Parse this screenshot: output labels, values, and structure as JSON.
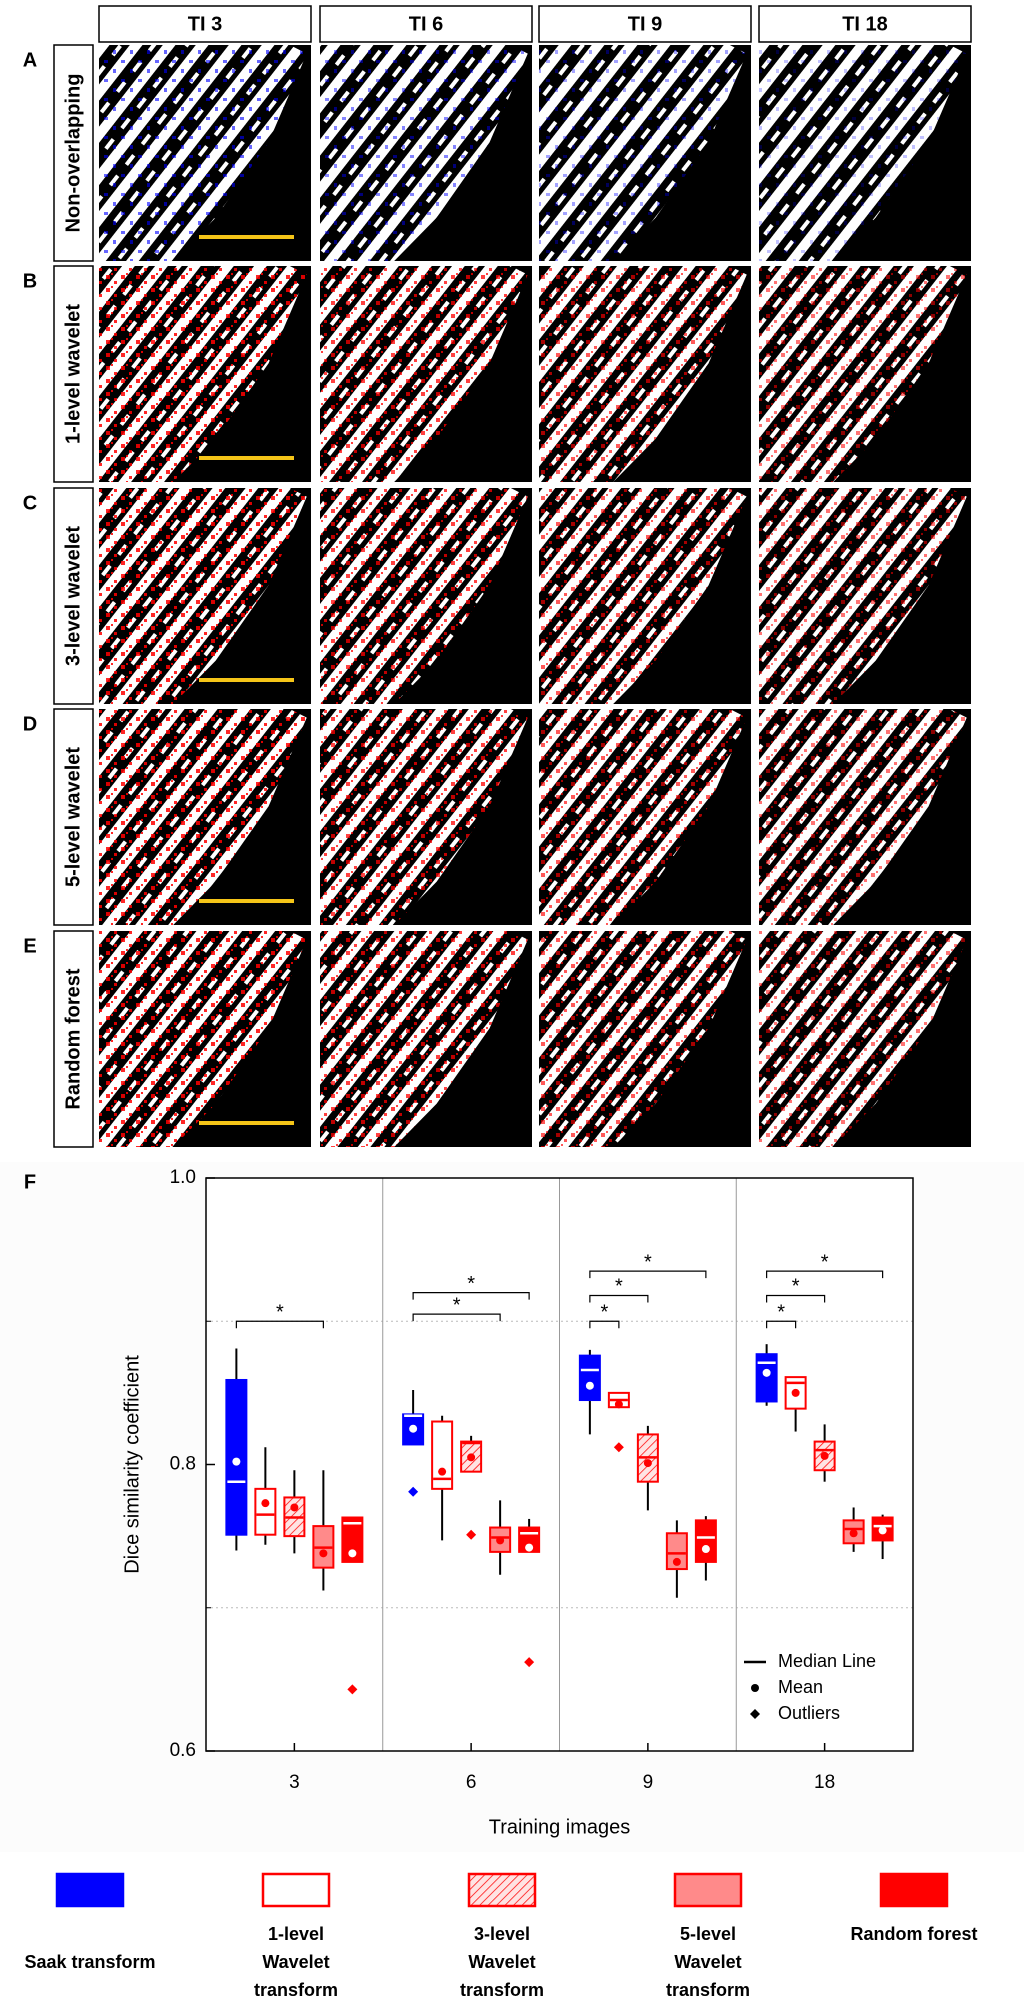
{
  "panels": {
    "columns": [
      "TI 3",
      "TI 6",
      "TI 9",
      "TI 18"
    ],
    "rows": [
      {
        "letter": "A",
        "label": "Non-overlapping"
      },
      {
        "letter": "B",
        "label": "1-level wavelet"
      },
      {
        "letter": "C",
        "label": "3-level wavelet"
      },
      {
        "letter": "D",
        "label": "5-level wavelet"
      },
      {
        "letter": "E",
        "label": "Random forest"
      }
    ]
  },
  "chart_data": {
    "type": "box",
    "panel_label": "F",
    "x_label": "Training images",
    "y_label": "Dice similarity coefficient",
    "categories": [
      "3",
      "6",
      "9",
      "18"
    ],
    "ylim": [
      0.6,
      1.0
    ],
    "yticks": [
      0.6,
      0.8,
      {
        "value": 1.0,
        "label": "1.0"
      }
    ],
    "grid_lines": [
      0.7,
      0.9
    ],
    "box_legend": [
      "Median Line",
      "Mean",
      "Outliers"
    ],
    "series": [
      {
        "name": "Saak transform",
        "color": "#0000ff",
        "fill_style": "solid",
        "boxes": [
          {
            "min": 0.74,
            "q1": 0.751,
            "median": 0.788,
            "q3": 0.859,
            "max": 0.881,
            "mean": 0.802,
            "outliers": []
          },
          {
            "min": 0.814,
            "q1": 0.814,
            "median": 0.834,
            "q3": 0.835,
            "max": 0.852,
            "mean": 0.825,
            "outliers": [
              0.781
            ]
          },
          {
            "min": 0.821,
            "q1": 0.845,
            "median": 0.866,
            "q3": 0.876,
            "max": 0.88,
            "mean": 0.855,
            "outliers": []
          },
          {
            "min": 0.841,
            "q1": 0.844,
            "median": 0.871,
            "q3": 0.877,
            "max": 0.884,
            "mean": 0.864,
            "outliers": []
          }
        ]
      },
      {
        "name": "1-level Wavelet transform",
        "color": "#ff0000",
        "fill_style": "outline",
        "boxes": [
          {
            "min": 0.744,
            "q1": 0.751,
            "median": 0.765,
            "q3": 0.783,
            "max": 0.812,
            "mean": 0.773,
            "outliers": []
          },
          {
            "min": 0.747,
            "q1": 0.783,
            "median": 0.79,
            "q3": 0.83,
            "max": 0.834,
            "mean": 0.795,
            "outliers": []
          },
          {
            "min": 0.84,
            "q1": 0.84,
            "median": 0.845,
            "q3": 0.85,
            "max": 0.85,
            "mean": 0.842,
            "outliers": [
              0.812
            ]
          },
          {
            "min": 0.823,
            "q1": 0.839,
            "median": 0.857,
            "q3": 0.861,
            "max": 0.861,
            "mean": 0.85,
            "outliers": []
          }
        ]
      },
      {
        "name": "3-level Wavelet transform",
        "color": "#ff0000",
        "fill_style": "hatch",
        "boxes": [
          {
            "min": 0.738,
            "q1": 0.75,
            "median": 0.763,
            "q3": 0.777,
            "max": 0.796,
            "mean": 0.77,
            "outliers": []
          },
          {
            "min": 0.795,
            "q1": 0.795,
            "median": 0.815,
            "q3": 0.816,
            "max": 0.82,
            "mean": 0.805,
            "outliers": [
              0.751
            ]
          },
          {
            "min": 0.768,
            "q1": 0.788,
            "median": 0.805,
            "q3": 0.821,
            "max": 0.827,
            "mean": 0.801,
            "outliers": []
          },
          {
            "min": 0.788,
            "q1": 0.796,
            "median": 0.81,
            "q3": 0.816,
            "max": 0.828,
            "mean": 0.806,
            "outliers": []
          }
        ]
      },
      {
        "name": "5-level Wavelet transform",
        "color": "#ff0000",
        "fill_style": "light",
        "boxes": [
          {
            "min": 0.712,
            "q1": 0.728,
            "median": 0.742,
            "q3": 0.757,
            "max": 0.796,
            "mean": 0.738,
            "outliers": []
          },
          {
            "min": 0.723,
            "q1": 0.739,
            "median": 0.749,
            "q3": 0.756,
            "max": 0.775,
            "mean": 0.747,
            "outliers": []
          },
          {
            "min": 0.707,
            "q1": 0.727,
            "median": 0.738,
            "q3": 0.752,
            "max": 0.761,
            "mean": 0.732,
            "outliers": []
          },
          {
            "min": 0.739,
            "q1": 0.745,
            "median": 0.755,
            "q3": 0.761,
            "max": 0.77,
            "mean": 0.752,
            "outliers": []
          }
        ]
      },
      {
        "name": "Random forest",
        "color": "#ff0000",
        "fill_style": "solid",
        "boxes": [
          {
            "min": 0.732,
            "q1": 0.732,
            "median": 0.759,
            "q3": 0.763,
            "max": 0.763,
            "mean": 0.738,
            "outliers": [
              0.643
            ]
          },
          {
            "min": 0.739,
            "q1": 0.739,
            "median": 0.752,
            "q3": 0.756,
            "max": 0.762,
            "mean": 0.742,
            "outliers": [
              0.662
            ]
          },
          {
            "min": 0.719,
            "q1": 0.732,
            "median": 0.749,
            "q3": 0.761,
            "max": 0.764,
            "mean": 0.741,
            "outliers": []
          },
          {
            "min": 0.734,
            "q1": 0.747,
            "median": 0.757,
            "q3": 0.763,
            "max": 0.765,
            "mean": 0.754,
            "outliers": []
          }
        ]
      }
    ],
    "brackets": [
      {
        "category": 0,
        "from": 0,
        "to": 3,
        "y": 0.9,
        "label": "*"
      },
      {
        "category": 1,
        "from": 0,
        "to": 3,
        "y": 0.905,
        "label": "*"
      },
      {
        "category": 1,
        "from": 0,
        "to": 4,
        "y": 0.92,
        "label": "*"
      },
      {
        "category": 2,
        "from": 0,
        "to": 1,
        "y": 0.9,
        "label": "*"
      },
      {
        "category": 2,
        "from": 0,
        "to": 2,
        "y": 0.918,
        "label": "*"
      },
      {
        "category": 2,
        "from": 0,
        "to": 4,
        "y": 0.935,
        "label": "*"
      },
      {
        "category": 3,
        "from": 0,
        "to": 1,
        "y": 0.9,
        "label": "*"
      },
      {
        "category": 3,
        "from": 0,
        "to": 2,
        "y": 0.918,
        "label": "*"
      },
      {
        "category": 3,
        "from": 0,
        "to": 4,
        "y": 0.935,
        "label": "*"
      }
    ]
  }
}
